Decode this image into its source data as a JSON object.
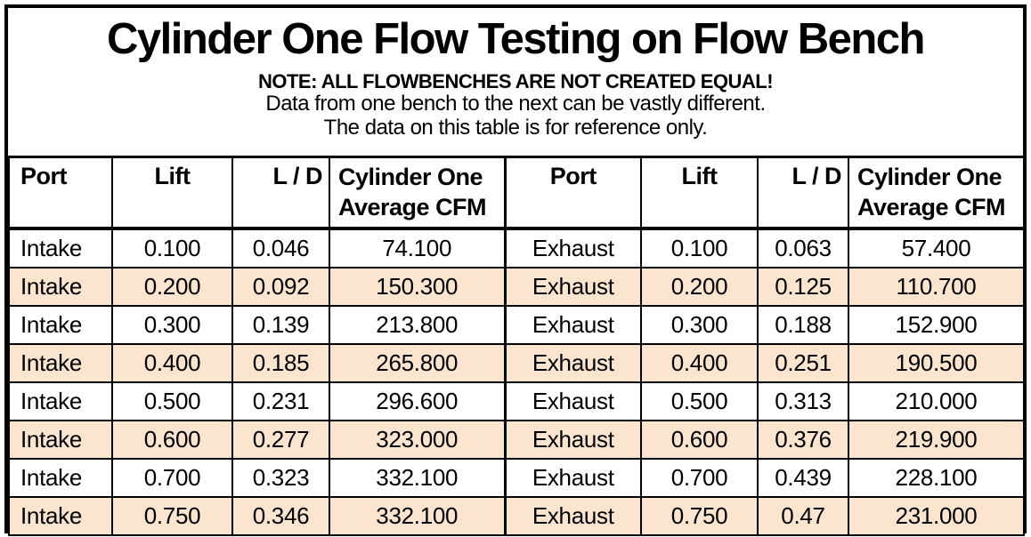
{
  "title": "Cylinder One Flow Testing on Flow Bench",
  "note": {
    "line1": "NOTE: ALL FLOWBENCHES ARE NOT CREATED EQUAL!",
    "line2": "Data from one bench to the next can be vastly different.",
    "line3": "The data on this table is for reference only."
  },
  "colors": {
    "stripe": "#fbe5ce",
    "border": "#000000",
    "background": "#ffffff",
    "text": "#000000"
  },
  "table": {
    "headers": [
      {
        "label": "Port"
      },
      {
        "label": "Lift"
      },
      {
        "label": "L / D"
      },
      {
        "line1": "Cylinder One",
        "line2": "Average CFM"
      },
      {
        "label": "Port"
      },
      {
        "label": "Lift"
      },
      {
        "label": "L / D"
      },
      {
        "line1": "Cylinder One",
        "line2": "Average CFM"
      }
    ],
    "rows": [
      [
        "Intake",
        "0.100",
        "0.046",
        "74.100",
        "Exhaust",
        "0.100",
        "0.063",
        "57.400"
      ],
      [
        "Intake",
        "0.200",
        "0.092",
        "150.300",
        "Exhaust",
        "0.200",
        "0.125",
        "110.700"
      ],
      [
        "Intake",
        "0.300",
        "0.139",
        "213.800",
        "Exhaust",
        "0.300",
        "0.188",
        "152.900"
      ],
      [
        "Intake",
        "0.400",
        "0.185",
        "265.800",
        "Exhaust",
        "0.400",
        "0.251",
        "190.500"
      ],
      [
        "Intake",
        "0.500",
        "0.231",
        "296.600",
        "Exhaust",
        "0.500",
        "0.313",
        "210.000"
      ],
      [
        "Intake",
        "0.600",
        "0.277",
        "323.000",
        "Exhaust",
        "0.600",
        "0.376",
        "219.900"
      ],
      [
        "Intake",
        "0.700",
        "0.323",
        "332.100",
        "Exhaust",
        "0.700",
        "0.439",
        "228.100"
      ],
      [
        "Intake",
        "0.750",
        "0.346",
        "332.100",
        "Exhaust",
        "0.750",
        "0.47",
        "231.000"
      ]
    ]
  },
  "chart_data": {
    "type": "table",
    "title": "Cylinder One Flow Testing on Flow Bench",
    "notes": [
      "NOTE: ALL FLOWBENCHES ARE NOT CREATED EQUAL!",
      "Data from one bench to the next can be vastly different.",
      "The data on this table is for reference only."
    ],
    "columns": [
      "Port",
      "Lift",
      "L / D",
      "Cylinder One Average CFM",
      "Port",
      "Lift",
      "L / D",
      "Cylinder One Average CFM"
    ],
    "series": [
      {
        "name": "Intake",
        "lift": [
          0.1,
          0.2,
          0.3,
          0.4,
          0.5,
          0.6,
          0.7,
          0.75
        ],
        "l_over_d": [
          0.046,
          0.092,
          0.139,
          0.185,
          0.231,
          0.277,
          0.323,
          0.346
        ],
        "average_cfm": [
          74.1,
          150.3,
          213.8,
          265.8,
          296.6,
          323.0,
          332.1,
          332.1
        ]
      },
      {
        "name": "Exhaust",
        "lift": [
          0.1,
          0.2,
          0.3,
          0.4,
          0.5,
          0.6,
          0.7,
          0.75
        ],
        "l_over_d": [
          0.063,
          0.125,
          0.188,
          0.251,
          0.313,
          0.376,
          0.439,
          0.47
        ],
        "average_cfm": [
          57.4,
          110.7,
          152.9,
          190.5,
          210.0,
          219.9,
          228.1,
          231.0
        ]
      }
    ],
    "layout": {
      "striped_rows": "alternating, even data rows shaded peach",
      "stripe_color": "#fbe5ce",
      "grid": true
    }
  }
}
